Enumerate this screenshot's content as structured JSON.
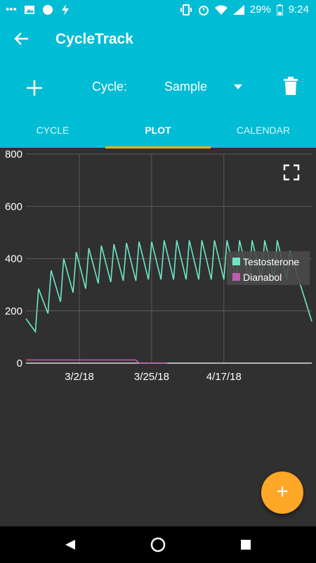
{
  "status_bar": {
    "battery": "29%",
    "time": "9:24"
  },
  "app": {
    "title": "CycleTrack"
  },
  "cycle": {
    "label": "Cycle:",
    "selected": "Sample"
  },
  "tabs": [
    {
      "label": "CYCLE",
      "active": false
    },
    {
      "label": "PLOT",
      "active": true
    },
    {
      "label": "CALENDAR",
      "active": false
    }
  ],
  "fab": {
    "label": "+"
  },
  "colors": {
    "primary": "#00bcd4",
    "accent": "#ffa726",
    "indicator": "#ffb300",
    "testosterone": "#6ee7c7",
    "dianabol": "#c05db0"
  },
  "chart_data": {
    "type": "line",
    "title": "",
    "xlabel": "",
    "ylabel": "",
    "ylim": [
      0,
      800
    ],
    "yticks": [
      "0",
      "200",
      "400",
      "600",
      "800"
    ],
    "xticks": [
      "3/2/18",
      "3/25/18",
      "4/17/18"
    ],
    "grid": true,
    "legend_position": "right",
    "series": [
      {
        "name": "Testosterone",
        "color": "#6ee7c7",
        "x": [
          "2/13/18",
          "2/16/18",
          "2/17/18",
          "2/20/18",
          "2/21/18",
          "2/24/18",
          "2/25/18",
          "2/28/18",
          "3/1/18",
          "3/4/18",
          "3/5/18",
          "3/8/18",
          "3/9/18",
          "3/12/18",
          "3/13/18",
          "3/16/18",
          "3/17/18",
          "3/20/18",
          "3/21/18",
          "3/24/18",
          "3/25/18",
          "3/28/18",
          "3/29/18",
          "4/1/18",
          "4/2/18",
          "4/5/18",
          "4/6/18",
          "4/9/18",
          "4/10/18",
          "4/13/18",
          "4/14/18",
          "4/17/18",
          "4/18/18",
          "4/21/18",
          "4/22/18",
          "4/25/18",
          "4/26/18",
          "4/29/18",
          "4/30/18",
          "5/3/18",
          "5/4/18",
          "5/7/18",
          "5/8/18",
          "5/15/18"
        ],
        "values": [
          170,
          120,
          285,
          190,
          355,
          235,
          400,
          270,
          425,
          285,
          440,
          305,
          450,
          310,
          455,
          315,
          460,
          315,
          465,
          320,
          465,
          320,
          470,
          320,
          470,
          320,
          470,
          320,
          470,
          320,
          470,
          320,
          470,
          320,
          470,
          320,
          470,
          320,
          470,
          320,
          470,
          320,
          430,
          160
        ]
      },
      {
        "name": "Dianabol",
        "color": "#c05db0",
        "x": [
          "2/13/18",
          "3/20/18",
          "3/21/18",
          "3/30/18"
        ],
        "values": [
          12,
          12,
          0,
          0
        ]
      }
    ]
  }
}
